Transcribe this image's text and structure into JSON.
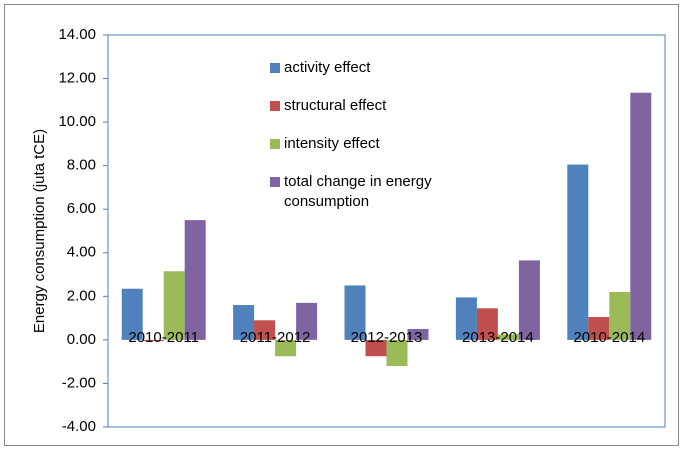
{
  "chart_data": {
    "type": "bar",
    "ylabel": "Energy consumption (juta tCE)",
    "categories": [
      "2010-2011",
      "2011-2012",
      "2012-2013",
      "2013-2014",
      "2010-2014"
    ],
    "series": [
      {
        "name": "activity effect",
        "color": "#4f81bd",
        "values": [
          2.35,
          1.6,
          2.5,
          1.95,
          8.05
        ]
      },
      {
        "name": "structural effect",
        "color": "#c0504d",
        "values": [
          -0.05,
          0.9,
          -0.75,
          1.45,
          1.05
        ]
      },
      {
        "name": "intensity effect",
        "color": "#9bbb59",
        "values": [
          3.15,
          -0.75,
          -1.2,
          0.25,
          2.2
        ]
      },
      {
        "name": "total change in energy consumption",
        "color": "#8064a2",
        "values": [
          5.5,
          1.7,
          0.5,
          3.65,
          11.35
        ]
      }
    ],
    "ylim": [
      -4,
      14
    ],
    "yticks": [
      {
        "value": -4,
        "label": "-4.00"
      },
      {
        "value": -2,
        "label": "-2.00"
      },
      {
        "value": 0,
        "label": "0.00"
      },
      {
        "value": 2,
        "label": "2.00"
      },
      {
        "value": 4,
        "label": "4.00"
      },
      {
        "value": 6,
        "label": "6.00"
      },
      {
        "value": 8,
        "label": "8.00"
      },
      {
        "value": 10,
        "label": "10.00"
      },
      {
        "value": 12,
        "label": "12.00"
      },
      {
        "value": 14,
        "label": "14.00"
      }
    ],
    "grid": false
  }
}
